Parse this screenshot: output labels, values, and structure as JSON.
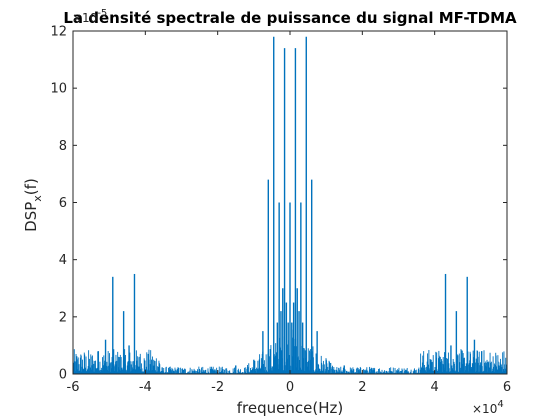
{
  "chart_data": {
    "type": "bar",
    "title": "La densité spectrale de puissance du signal MF-TDMA",
    "xlabel": "frequence(Hz)",
    "ylabel": "DSP",
    "ylabel_subscript": "x",
    "ylabel_suffix": "(f)",
    "x_multiplier_base": "×10",
    "x_multiplier_exp": "4",
    "y_multiplier_base": "×10",
    "y_multiplier_exp": "-5",
    "xlim": [
      -60000,
      60000
    ],
    "ylim": [
      0,
      0.00012
    ],
    "xticks": [
      -60000,
      -40000,
      -20000,
      0,
      20000,
      40000,
      60000
    ],
    "xtick_labels": [
      "-6",
      "-4",
      "-2",
      "0",
      "2",
      "4",
      "6"
    ],
    "yticks": [
      0,
      2e-05,
      4e-05,
      6e-05,
      8e-05,
      0.0001,
      0.00012
    ],
    "ytick_labels": [
      "0",
      "2",
      "4",
      "6",
      "8",
      "10",
      "12"
    ],
    "grid": false,
    "bar_color": "#0072BD",
    "spectral_lines": {
      "x": [
        -51000,
        -49000,
        -47500,
        -46000,
        -44500,
        -43000,
        -41500,
        -7500,
        -6000,
        -4500,
        -3000,
        -1500,
        0,
        1500,
        3000,
        4500,
        6000,
        7500,
        41500,
        43000,
        44500,
        46000,
        47500,
        49000,
        51000,
        -1000,
        -500,
        500,
        1000,
        -2000,
        2000,
        -2500,
        2500,
        -3500,
        3500,
        -53000,
        -39000,
        39000,
        53000,
        -15000,
        15000,
        -10000,
        10000
      ],
      "y": [
        1.2e-05,
        3.4e-05,
        6e-06,
        2.2e-05,
        1e-05,
        3.5e-05,
        6e-06,
        1.5e-05,
        6.8e-05,
        0.000118,
        6e-05,
        0.000114,
        6e-05,
        0.000114,
        6e-05,
        0.000118,
        6.8e-05,
        1.5e-05,
        6e-06,
        3.5e-05,
        1e-05,
        2.2e-05,
        6e-06,
        3.4e-05,
        1.2e-05,
        2.5e-05,
        1.8e-05,
        1.8e-05,
        2.5e-05,
        3e-05,
        3e-05,
        2.2e-05,
        2.2e-05,
        1.8e-05,
        1.8e-05,
        8e-06,
        5e-06,
        5e-06,
        8e-06,
        3e-06,
        3e-06,
        5e-06,
        5e-06
      ]
    },
    "noise_bands": [
      {
        "x_start": -60000,
        "x_end": -36000,
        "level": 5e-06
      },
      {
        "x_start": -36000,
        "x_end": -12000,
        "level": 1.5e-06
      },
      {
        "x_start": -12000,
        "x_end": 12000,
        "level": 9e-06
      },
      {
        "x_start": 12000,
        "x_end": 36000,
        "level": 1.5e-06
      },
      {
        "x_start": 36000,
        "x_end": 60000,
        "level": 5e-06
      }
    ]
  }
}
